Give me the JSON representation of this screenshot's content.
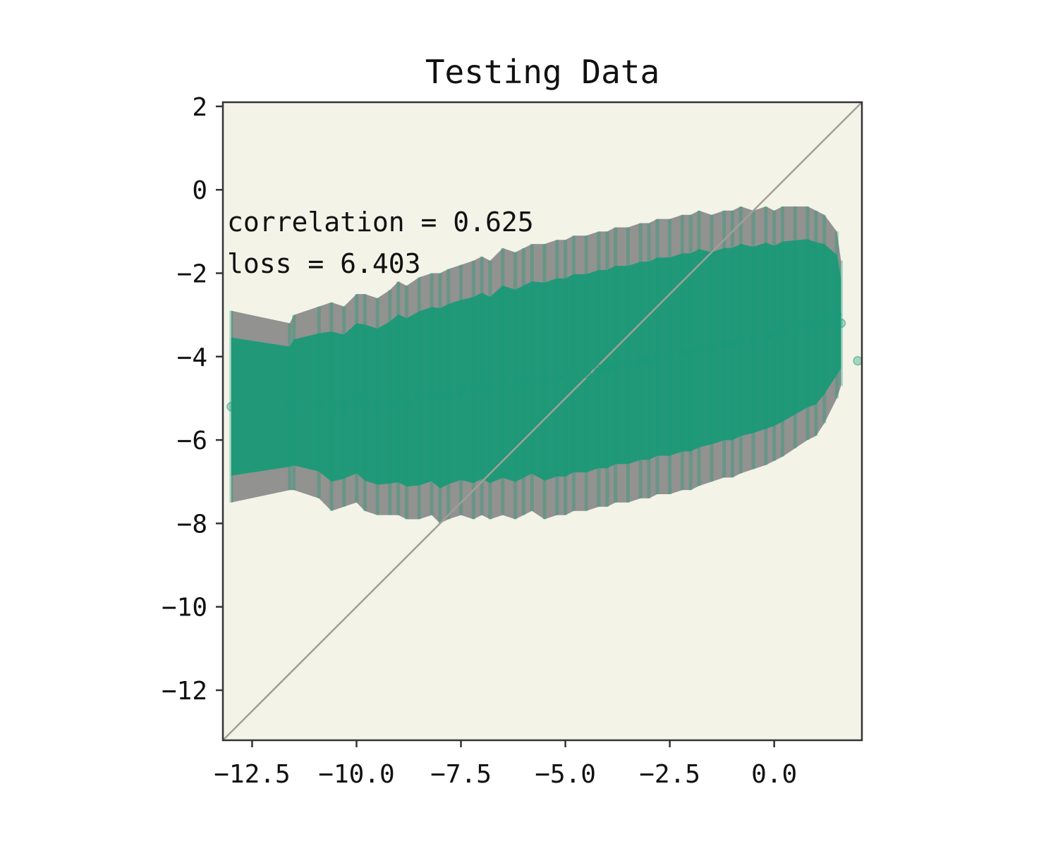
{
  "chart_data": {
    "type": "scatter",
    "title": "Testing Data",
    "xlabel": "",
    "ylabel": "",
    "xlim": [
      -13.2,
      2.1
    ],
    "ylim": [
      -13.2,
      2.1
    ],
    "x_ticks": [
      -12.5,
      -10.0,
      -7.5,
      -5.0,
      -2.5,
      0.0
    ],
    "x_tick_labels": [
      "−12.5",
      "−10.0",
      "−7.5",
      "−5.0",
      "−2.5",
      "0.0"
    ],
    "y_ticks": [
      2,
      0,
      -2,
      -4,
      -6,
      -8,
      -10,
      -12
    ],
    "y_tick_labels": [
      "2",
      "0",
      "−2",
      "−4",
      "−6",
      "−8",
      "−10",
      "−12"
    ],
    "grid": false,
    "reference_line": {
      "x": [
        -13.2,
        2.1
      ],
      "y": [
        -13.2,
        2.1
      ]
    },
    "annotations": [
      "correlation = 0.625",
      "loss = 6.403"
    ],
    "colors": {
      "background": "#f3f3e8",
      "points": "#1b9a78",
      "errorbars": "#808080",
      "reference": "#a0a098",
      "frame": "#333333"
    },
    "series": [
      {
        "x": [
          -13.0,
          -11.6,
          -11.5,
          -10.9,
          -10.6,
          -10.3,
          -10.0,
          -9.8,
          -9.5,
          -9.2,
          -9.0,
          -8.8,
          -8.5,
          -8.2,
          -8.0,
          -7.8,
          -7.5,
          -7.2,
          -7.0,
          -6.8,
          -6.5,
          -6.2,
          -6.0,
          -5.8,
          -5.5,
          -5.2,
          -5.0,
          -4.8,
          -4.5,
          -4.2,
          -4.0,
          -3.8,
          -3.5,
          -3.2,
          -3.0,
          -2.8,
          -2.5,
          -2.2,
          -2.0,
          -1.8,
          -1.5,
          -1.2,
          -1.0,
          -0.8,
          -0.5,
          -0.2,
          0.0,
          0.2,
          0.5,
          0.8,
          1.0,
          1.2,
          1.5,
          1.6,
          2.0
        ],
        "y": [
          -5.2,
          -5.2,
          -5.1,
          -5.1,
          -5.2,
          -5.2,
          -5.0,
          -5.1,
          -5.2,
          -5.1,
          -5.0,
          -5.1,
          -5.0,
          -4.9,
          -5.0,
          -4.9,
          -4.8,
          -4.8,
          -4.7,
          -4.8,
          -4.6,
          -4.7,
          -4.6,
          -4.5,
          -4.6,
          -4.5,
          -4.5,
          -4.4,
          -4.4,
          -4.3,
          -4.3,
          -4.2,
          -4.2,
          -4.1,
          -4.1,
          -4.0,
          -4.0,
          -3.9,
          -3.9,
          -3.8,
          -3.8,
          -3.7,
          -3.7,
          -3.6,
          -3.6,
          -3.5,
          -3.5,
          -3.4,
          -3.3,
          -3.2,
          -3.2,
          -3.1,
          -3.0,
          -3.2,
          -4.1
        ],
        "yerr": [
          2.3,
          2.0,
          2.1,
          2.3,
          2.5,
          2.4,
          2.5,
          2.6,
          2.6,
          2.7,
          2.8,
          2.8,
          2.9,
          2.9,
          3.0,
          3.0,
          3.0,
          3.1,
          3.1,
          3.1,
          3.2,
          3.2,
          3.2,
          3.2,
          3.3,
          3.3,
          3.3,
          3.3,
          3.3,
          3.3,
          3.3,
          3.3,
          3.3,
          3.3,
          3.3,
          3.3,
          3.3,
          3.3,
          3.3,
          3.3,
          3.2,
          3.2,
          3.2,
          3.2,
          3.1,
          3.1,
          3.0,
          3.0,
          2.9,
          2.8,
          2.7,
          2.5,
          2.0,
          1.5,
          0.0
        ]
      }
    ]
  }
}
